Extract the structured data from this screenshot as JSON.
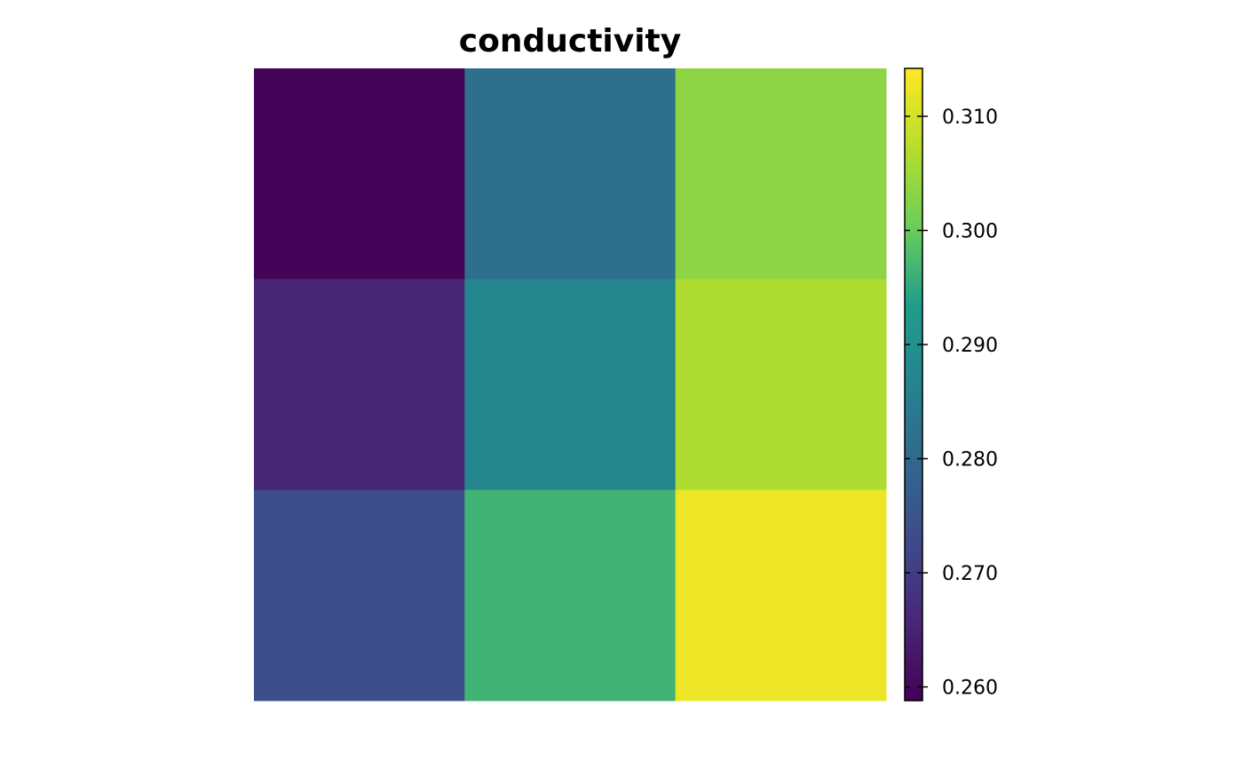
{
  "chart_data": {
    "type": "heatmap",
    "title": "conductivity",
    "xlabel": "",
    "ylabel": "",
    "grid": false,
    "rows": 3,
    "cols": 3,
    "values": [
      [
        0.2595,
        0.2815,
        0.3035
      ],
      [
        0.2655,
        0.2875,
        0.3065
      ],
      [
        0.2735,
        0.2965,
        0.3125
      ]
    ],
    "colorbar": {
      "min": 0.2588,
      "max": 0.3142,
      "ticks": [
        0.26,
        0.27,
        0.28,
        0.29,
        0.3,
        0.31
      ],
      "tick_labels": [
        "0.260",
        "0.270",
        "0.280",
        "0.290",
        "0.300",
        "0.310"
      ],
      "palette": "viridis",
      "placement": "right"
    }
  },
  "colors": {
    "viridis_stops": [
      "#440154",
      "#482777",
      "#3f4a8a",
      "#31678e",
      "#26838f",
      "#1f9d8a",
      "#6cce5a",
      "#b6de2b",
      "#fee825"
    ]
  }
}
